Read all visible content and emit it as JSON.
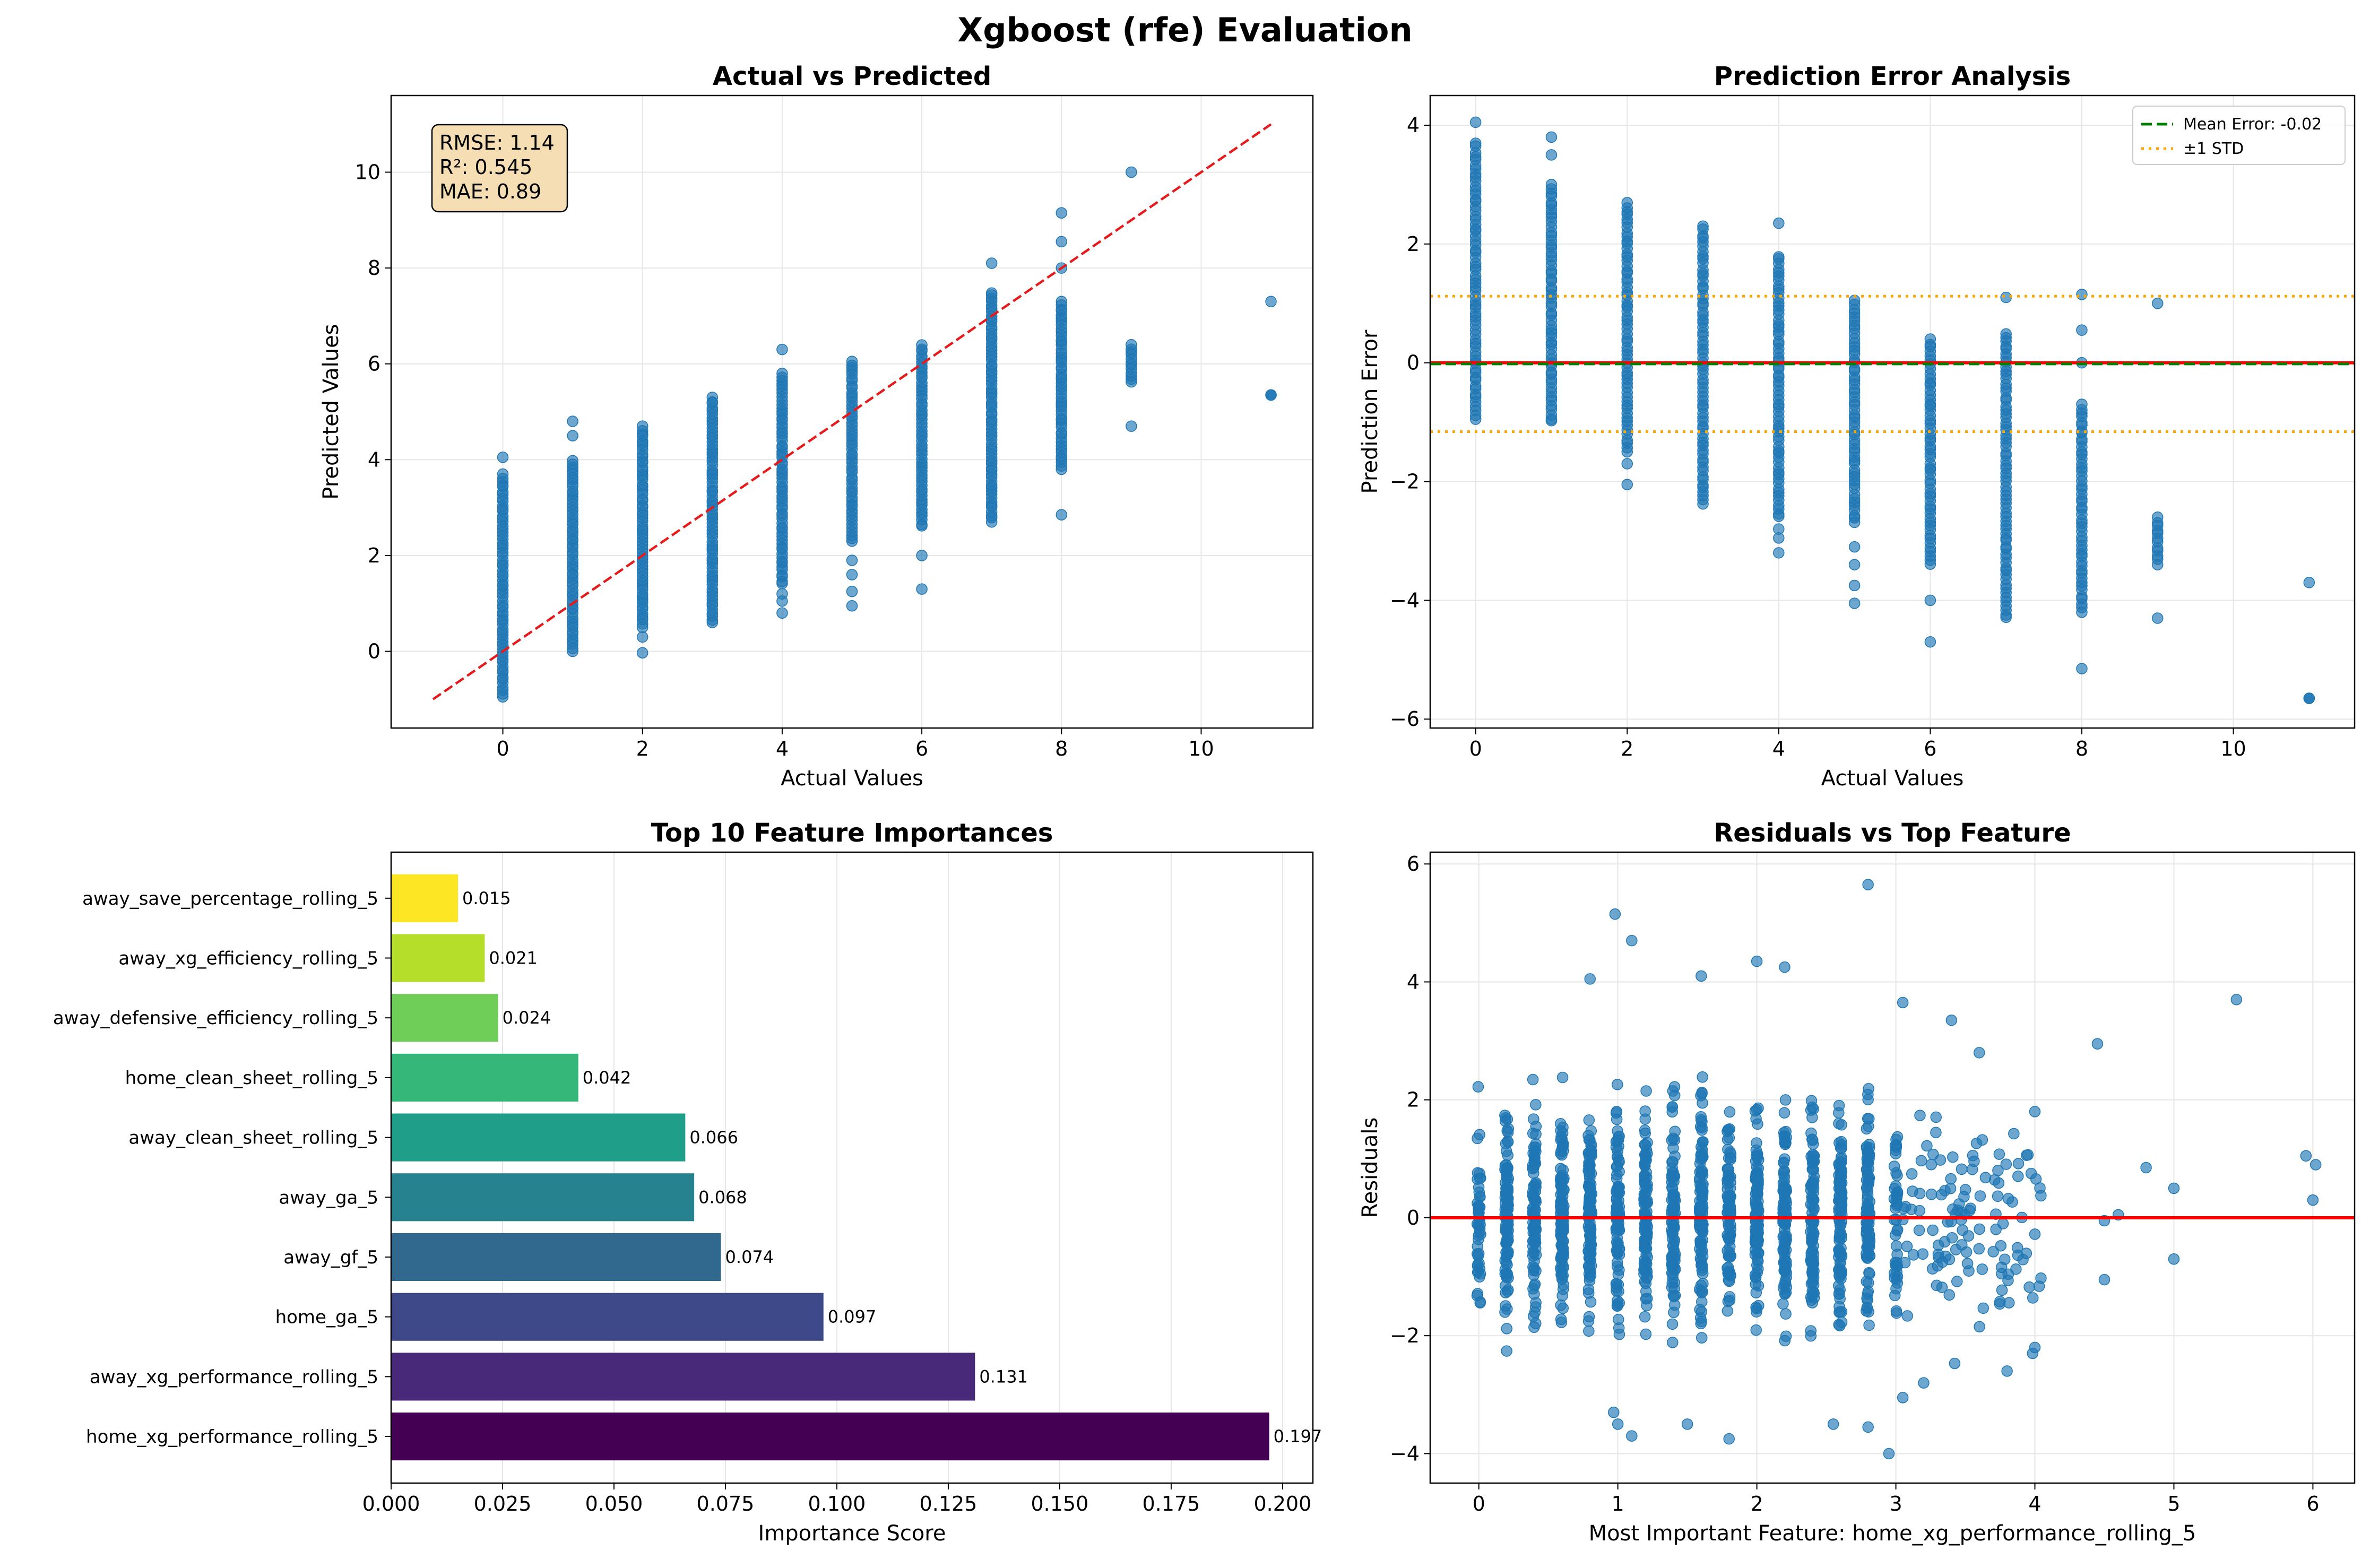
{
  "figure_title": "Xgboost (rfe) Evaluation",
  "colors": {
    "scatter": "#1f77b4",
    "identity_line": "#e41a1c",
    "zero_line": "#ff0000",
    "mean_error_line": "#008000",
    "std_line": "#ffa500",
    "stats_box_fill": "#f5deb3",
    "grid": "#e6e6e6"
  },
  "chart_data": [
    {
      "id": "actual-vs-predicted",
      "type": "scatter",
      "title": "Actual vs Predicted",
      "xlabel": "Actual Values",
      "ylabel": "Predicted Values",
      "xlim": [
        -1.6,
        11.6
      ],
      "ylim": [
        -1.6,
        11.6
      ],
      "xticks": [
        0,
        2,
        4,
        6,
        8,
        10
      ],
      "yticks": [
        0,
        2,
        4,
        6,
        8,
        10
      ],
      "grid": true,
      "stats_box": [
        "RMSE: 1.14",
        "R²: 0.545",
        "MAE: 0.89"
      ],
      "reference_line": {
        "style": "dashed",
        "from": [
          -1,
          -1
        ],
        "to": [
          11,
          11
        ],
        "color": "#e41a1c"
      },
      "strips": [
        {
          "x": 0,
          "ymin": -0.95,
          "ymax": 3.7,
          "outliers": [
            4.05
          ]
        },
        {
          "x": 1,
          "ymin": 0.0,
          "ymax": 4.0,
          "outliers": [
            4.5,
            4.8
          ]
        },
        {
          "x": 2,
          "ymin": 0.5,
          "ymax": 4.7,
          "outliers": [
            0.3,
            -0.03
          ]
        },
        {
          "x": 3,
          "ymin": 0.6,
          "ymax": 5.3,
          "outliers": []
        },
        {
          "x": 4,
          "ymin": 1.4,
          "ymax": 5.8,
          "outliers": [
            1.2,
            1.05,
            0.8,
            6.3
          ]
        },
        {
          "x": 5,
          "ymin": 2.3,
          "ymax": 6.05,
          "outliers": [
            1.9,
            1.6,
            1.25,
            0.95
          ]
        },
        {
          "x": 6,
          "ymin": 2.6,
          "ymax": 6.4,
          "outliers": [
            2.0,
            1.3
          ]
        },
        {
          "x": 7,
          "ymin": 2.7,
          "ymax": 7.5,
          "outliers": [
            8.1
          ]
        },
        {
          "x": 8,
          "ymin": 3.8,
          "ymax": 7.3,
          "outliers": [
            2.85,
            9.15,
            8.55,
            8.0
          ]
        },
        {
          "x": 9,
          "ymin": 5.6,
          "ymax": 6.4,
          "outliers": [
            4.7,
            10.0
          ]
        },
        {
          "x": 11,
          "ymin": 5.35,
          "ymax": 5.35,
          "outliers": [
            7.3
          ]
        }
      ]
    },
    {
      "id": "prediction-error",
      "type": "scatter",
      "title": "Prediction Error Analysis",
      "xlabel": "Actual Values",
      "ylabel": "Prediction Error",
      "xlim": [
        -0.6,
        11.6
      ],
      "ylim": [
        -6.15,
        4.5
      ],
      "xticks": [
        0,
        2,
        4,
        6,
        8,
        10
      ],
      "yticks": [
        -6,
        -4,
        -2,
        0,
        2,
        4
      ],
      "grid": true,
      "zero_line": 0,
      "mean_error": -0.02,
      "std": 1.14,
      "legend": {
        "position": "upper right",
        "entries": [
          "Mean Error: -0.02",
          "±1 STD"
        ]
      },
      "strips": [
        {
          "x": 0,
          "ymin": -0.95,
          "ymax": 3.7,
          "outliers": [
            4.05
          ]
        },
        {
          "x": 1,
          "ymin": -1.0,
          "ymax": 3.0,
          "outliers": [
            3.5,
            3.8
          ]
        },
        {
          "x": 2,
          "ymin": -1.5,
          "ymax": 2.7,
          "outliers": [
            -1.7,
            -2.05
          ]
        },
        {
          "x": 3,
          "ymin": -2.4,
          "ymax": 2.3,
          "outliers": []
        },
        {
          "x": 4,
          "ymin": -2.6,
          "ymax": 1.8,
          "outliers": [
            -2.8,
            -2.95,
            -3.2,
            2.35
          ]
        },
        {
          "x": 5,
          "ymin": -2.7,
          "ymax": 1.05,
          "outliers": [
            -3.1,
            -3.4,
            -3.75,
            -4.05
          ]
        },
        {
          "x": 6,
          "ymin": -3.4,
          "ymax": 0.4,
          "outliers": [
            -4.0,
            -4.7
          ]
        },
        {
          "x": 7,
          "ymin": -4.3,
          "ymax": 0.5,
          "outliers": [
            1.1
          ]
        },
        {
          "x": 8,
          "ymin": -4.2,
          "ymax": -0.7,
          "outliers": [
            -5.15,
            1.15,
            0.55,
            0.0
          ]
        },
        {
          "x": 9,
          "ymin": -3.4,
          "ymax": -2.6,
          "outliers": [
            -4.3,
            1.0
          ]
        },
        {
          "x": 11,
          "ymin": -5.65,
          "ymax": -5.65,
          "outliers": [
            -3.7
          ]
        }
      ]
    },
    {
      "id": "feature-importances",
      "type": "bar",
      "orientation": "horizontal",
      "title": "Top 10 Feature Importances",
      "xlabel": "Importance Score",
      "ylabel": "",
      "xlim": [
        0,
        0.2068
      ],
      "xticks": [
        0.0,
        0.025,
        0.05,
        0.075,
        0.1,
        0.125,
        0.15,
        0.175,
        0.2
      ],
      "xtick_labels": [
        "0.000",
        "0.025",
        "0.050",
        "0.075",
        "0.100",
        "0.125",
        "0.150",
        "0.175",
        "0.200"
      ],
      "grid": true,
      "categories": [
        "home_xg_performance_rolling_5",
        "away_xg_performance_rolling_5",
        "home_ga_5",
        "away_gf_5",
        "away_ga_5",
        "away_clean_sheet_rolling_5",
        "home_clean_sheet_rolling_5",
        "away_defensive_efficiency_rolling_5",
        "away_xg_efficiency_rolling_5",
        "away_save_percentage_rolling_5"
      ],
      "values": [
        0.197,
        0.131,
        0.097,
        0.074,
        0.068,
        0.066,
        0.042,
        0.024,
        0.021,
        0.015
      ],
      "value_labels": [
        "0.197",
        "0.131",
        "0.097",
        "0.074",
        "0.068",
        "0.066",
        "0.042",
        "0.024",
        "0.021",
        "0.015"
      ],
      "bar_colors": [
        "#440154",
        "#482878",
        "#3e4989",
        "#31688e",
        "#26828e",
        "#1f9e89",
        "#35b779",
        "#6ece58",
        "#b5de2b",
        "#fde725"
      ]
    },
    {
      "id": "residuals-vs-top-feature",
      "type": "scatter",
      "title": "Residuals vs Top Feature",
      "xlabel": "Most Important Feature: home_xg_performance_rolling_5",
      "ylabel": "Residuals",
      "xlim": [
        -0.35,
        6.3
      ],
      "ylim": [
        -4.5,
        6.2
      ],
      "xticks": [
        0,
        1,
        2,
        3,
        4,
        5,
        6
      ],
      "yticks": [
        -4,
        -2,
        0,
        2,
        4,
        6
      ],
      "grid": true,
      "zero_line": 0,
      "cloud": {
        "xmin": 0.0,
        "xmax": 3.0,
        "ymin": -2.6,
        "ymax": 2.6
      },
      "outliers": [
        [
          2.8,
          5.65
        ],
        [
          0.98,
          5.15
        ],
        [
          1.1,
          4.7
        ],
        [
          2.0,
          4.35
        ],
        [
          1.6,
          4.1
        ],
        [
          0.8,
          4.05
        ],
        [
          2.2,
          4.25
        ],
        [
          3.05,
          3.65
        ],
        [
          5.45,
          3.7
        ],
        [
          3.4,
          3.35
        ],
        [
          4.45,
          2.95
        ],
        [
          3.6,
          2.8
        ],
        [
          4.0,
          1.8
        ],
        [
          4.8,
          0.85
        ],
        [
          5.95,
          1.05
        ],
        [
          6.0,
          0.3
        ],
        [
          6.02,
          0.9
        ],
        [
          5.0,
          0.5
        ],
        [
          4.5,
          -0.05
        ],
        [
          4.6,
          0.05
        ],
        [
          5.0,
          -0.7
        ],
        [
          4.5,
          -1.05
        ],
        [
          4.0,
          -2.2
        ],
        [
          3.8,
          -2.6
        ],
        [
          0.97,
          -3.3
        ],
        [
          1.0,
          -3.5
        ],
        [
          1.1,
          -3.7
        ],
        [
          1.5,
          -3.5
        ],
        [
          1.8,
          -3.75
        ],
        [
          2.55,
          -3.5
        ],
        [
          2.8,
          -3.55
        ],
        [
          2.95,
          -4.0
        ],
        [
          3.2,
          -2.8
        ],
        [
          3.05,
          -3.05
        ]
      ]
    }
  ]
}
